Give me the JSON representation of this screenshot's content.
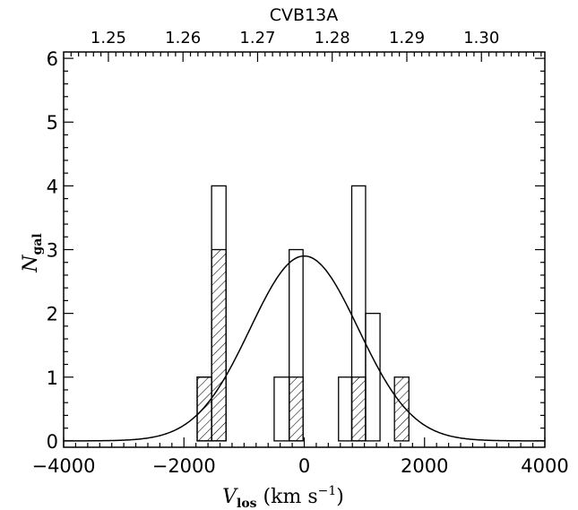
{
  "chart_data": {
    "type": "bar",
    "title": "CVB13A",
    "xlabel": {
      "main": "V",
      "sub": "los",
      "rest": " (km s",
      "sup": "−1",
      "close": ")"
    },
    "ylabel": {
      "main": "N",
      "sub": "gal"
    },
    "xlim": [
      -4000,
      4000
    ],
    "ylim": [
      -0.1,
      6.1
    ],
    "xticks": [
      -4000,
      -2000,
      0,
      2000,
      4000
    ],
    "xtick_labels": [
      "−4000",
      "−2000",
      "0",
      "2000",
      "4000"
    ],
    "yticks": [
      0,
      1,
      2,
      3,
      4,
      5,
      6
    ],
    "ytick_labels": [
      "0",
      "1",
      "2",
      "3",
      "4",
      "5",
      "6"
    ],
    "top_axis": {
      "ticks": [
        1.25,
        1.26,
        1.27,
        1.28,
        1.29,
        1.3
      ],
      "tick_labels": [
        "1.25",
        "1.26",
        "1.27",
        "1.28",
        "1.29",
        "1.30"
      ]
    },
    "series": [
      {
        "style": "open",
        "bins": [
          {
            "x0": -1780,
            "x1": -1540,
            "count": 1
          },
          {
            "x0": -1540,
            "x1": -1300,
            "count": 4
          },
          {
            "x0": -500,
            "x1": -250,
            "count": 1
          },
          {
            "x0": -250,
            "x1": -20,
            "count": 3
          },
          {
            "x0": 570,
            "x1": 790,
            "count": 1
          },
          {
            "x0": 790,
            "x1": 1020,
            "count": 4
          },
          {
            "x0": 1020,
            "x1": 1260,
            "count": 2
          }
        ]
      },
      {
        "style": "hatched",
        "bins": [
          {
            "x0": -1780,
            "x1": -1540,
            "count": 1
          },
          {
            "x0": -1540,
            "x1": -1300,
            "count": 3
          },
          {
            "x0": -250,
            "x1": -20,
            "count": 1
          },
          {
            "x0": 790,
            "x1": 1020,
            "count": 1
          },
          {
            "x0": 1500,
            "x1": 1740,
            "count": 1
          }
        ]
      },
      {
        "style": "gaussian",
        "mean": 0,
        "sigma": 900,
        "amplitude": 2.9
      }
    ],
    "grid": false,
    "legend": "none"
  }
}
